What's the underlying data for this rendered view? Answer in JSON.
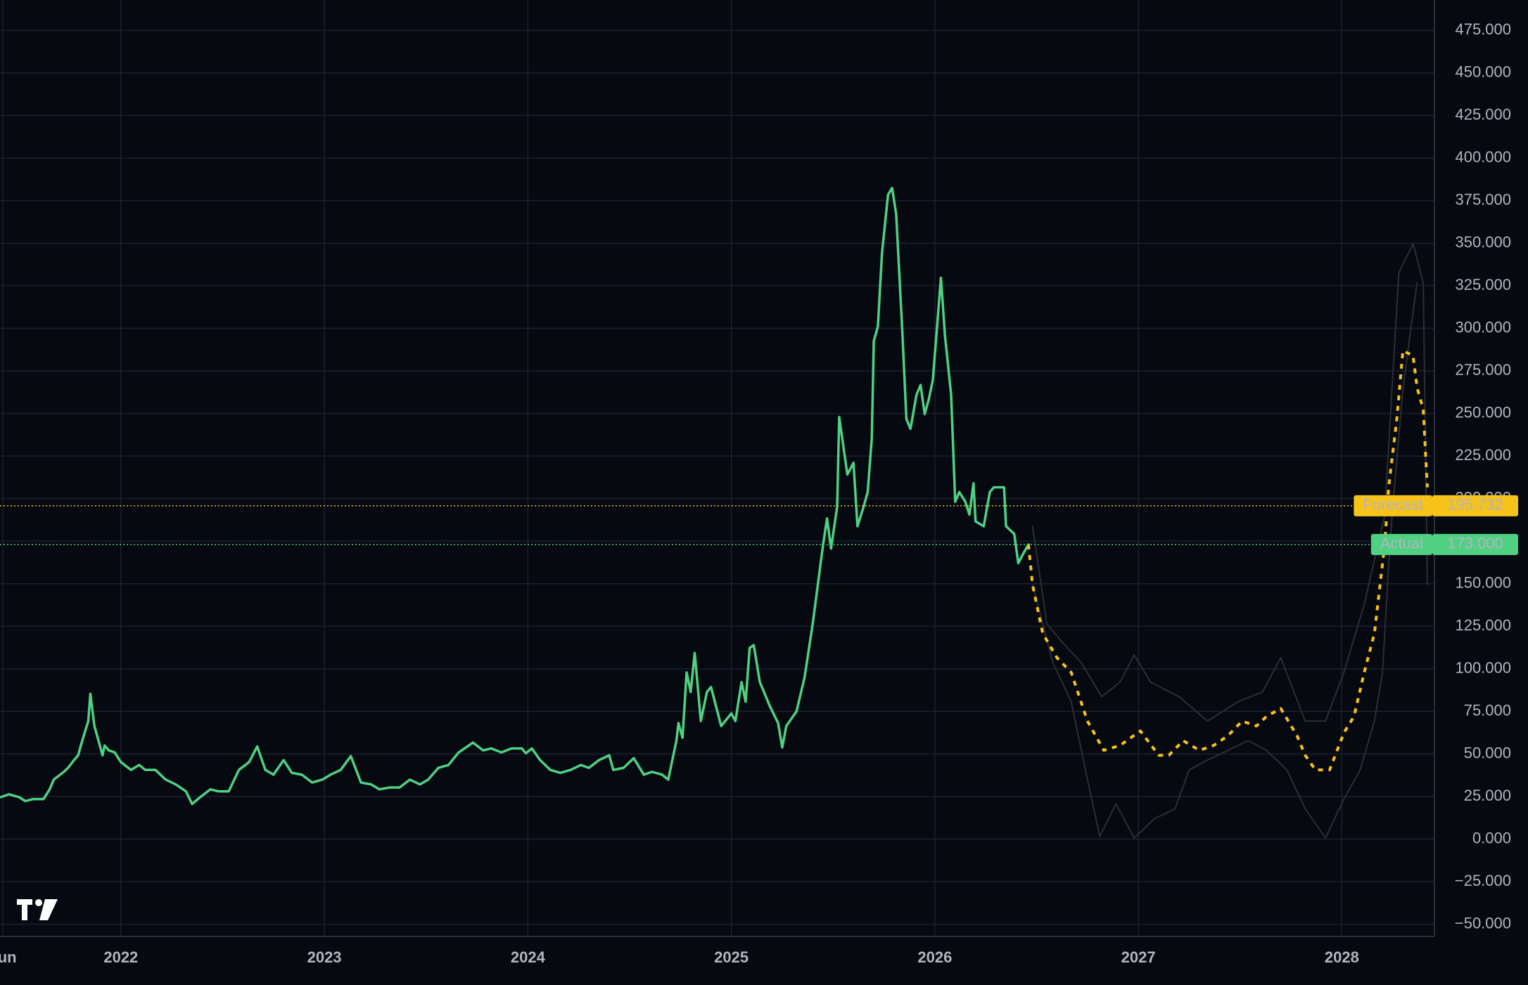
{
  "chart_data": {
    "type": "line",
    "xlim": [
      2021.406,
      2028.455
    ],
    "ylim": [
      -57.2,
      492.8
    ],
    "grid": true,
    "xticks": [
      {
        "value": 2021.42,
        "label": "Jun"
      },
      2022,
      2023,
      2024,
      2025,
      2026,
      2027,
      2028
    ],
    "yticks": [
      {
        "value": -50,
        "label": "−50.000"
      },
      {
        "value": -25,
        "label": "−25.000"
      },
      {
        "value": 0,
        "label": "0.000"
      },
      {
        "value": 25,
        "label": "25.000"
      },
      {
        "value": 50,
        "label": "50.000"
      },
      {
        "value": 75,
        "label": "75.000"
      },
      {
        "value": 100,
        "label": "100.000"
      },
      {
        "value": 125,
        "label": "125.000"
      },
      {
        "value": 150,
        "label": "150.000"
      },
      {
        "value": 175,
        "label": "175.000"
      },
      {
        "value": 200,
        "label": "200.000"
      },
      {
        "value": 225,
        "label": "225.000"
      },
      {
        "value": 250,
        "label": "250.000"
      },
      {
        "value": 275,
        "label": "275.000"
      },
      {
        "value": 300,
        "label": "300.000"
      },
      {
        "value": 325,
        "label": "325.000"
      },
      {
        "value": 350,
        "label": "350.000"
      },
      {
        "value": 375,
        "label": "375.000"
      },
      {
        "value": 400,
        "label": "400.000"
      },
      {
        "value": 425,
        "label": "425.000"
      },
      {
        "value": 450,
        "label": "450.000"
      },
      {
        "value": 475,
        "label": "475.000"
      }
    ],
    "series": [
      {
        "color": "#2b2e36",
        "style": "band",
        "x": [
          2026.48,
          2026.55,
          2026.63,
          2026.72,
          2026.82,
          2026.91,
          2026.98,
          2027.06,
          2027.2,
          2027.34,
          2027.49,
          2027.61,
          2027.7,
          2027.82,
          2027.92,
          2028.01,
          2028.11,
          2028.21,
          2028.28,
          2028.35,
          2028.4,
          2028.42
        ],
        "values": [
          183.7,
          126.5,
          115,
          103.6,
          83.6,
          92.2,
          108.2,
          92.2,
          83.6,
          69.3,
          80.7,
          86.4,
          106.5,
          69.3,
          69.3,
          97.9,
          137.9,
          189.5,
          332.6,
          349.7,
          326.8,
          149.4
        ]
      },
      {
        "color": "#2b2e36",
        "style": "band",
        "x": [
          2026.48,
          2026.58,
          2026.67,
          2026.75,
          2026.81,
          2026.89,
          2026.98,
          2027.08,
          2027.18,
          2027.25,
          2027.34,
          2027.44,
          2027.54,
          2027.63,
          2027.73,
          2027.82,
          2027.92,
          2028.01,
          2028.09,
          2028.16,
          2028.2,
          2028.23,
          2028.25,
          2028.3,
          2028.35,
          2028.37
        ],
        "values": [
          149.4,
          103.6,
          80.7,
          34.9,
          1.7,
          20.6,
          0.6,
          12,
          17.7,
          40.6,
          46.4,
          52.1,
          57.8,
          52.1,
          40.6,
          17.7,
          0.6,
          23.5,
          40.6,
          69.3,
          97.9,
          160.8,
          195.2,
          263.9,
          309.7,
          326.8
        ]
      },
      {
        "name": "Actual",
        "color": "#4fd083",
        "style": "solid",
        "price_line": {
          "value": 173,
          "label": "173.000"
        },
        "x": [
          2021.41,
          2021.45,
          2021.5,
          2021.53,
          2021.57,
          2021.62,
          2021.65,
          2021.67,
          2021.72,
          2021.74,
          2021.77,
          2021.79,
          2021.81,
          2021.84,
          2021.85,
          2021.87,
          2021.89,
          2021.91,
          2021.92,
          2021.94,
          2021.97,
          2022.0,
          2022.05,
          2022.09,
          2022.12,
          2022.17,
          2022.22,
          2022.27,
          2022.32,
          2022.35,
          2022.39,
          2022.44,
          2022.48,
          2022.53,
          2022.58,
          2022.63,
          2022.67,
          2022.71,
          2022.75,
          2022.8,
          2022.84,
          2022.89,
          2022.94,
          2022.99,
          2023.03,
          2023.08,
          2023.13,
          2023.18,
          2023.23,
          2023.27,
          2023.32,
          2023.37,
          2023.42,
          2023.47,
          2023.51,
          2023.56,
          2023.61,
          2023.66,
          2023.71,
          2023.73,
          2023.78,
          2023.82,
          2023.87,
          2023.92,
          2023.97,
          2023.99,
          2024.02,
          2024.06,
          2024.11,
          2024.16,
          2024.21,
          2024.26,
          2024.3,
          2024.35,
          2024.4,
          2024.42,
          2024.47,
          2024.52,
          2024.57,
          2024.61,
          2024.66,
          2024.69,
          2024.71,
          2024.73,
          2024.74,
          2024.76,
          2024.78,
          2024.8,
          2024.82,
          2024.85,
          2024.88,
          2024.9,
          2024.95,
          2025.0,
          2025.02,
          2025.05,
          2025.07,
          2025.09,
          2025.11,
          2025.14,
          2025.19,
          2025.23,
          2025.25,
          2025.27,
          2025.32,
          2025.36,
          2025.4,
          2025.45,
          2025.47,
          2025.49,
          2025.52,
          2025.53,
          2025.57,
          2025.6,
          2025.62,
          2025.65,
          2025.67,
          2025.69,
          2025.7,
          2025.72,
          2025.74,
          2025.77,
          2025.79,
          2025.81,
          2025.84,
          2025.86,
          2025.88,
          2025.91,
          2025.93,
          2025.95,
          2025.97,
          2025.99,
          2026.03,
          2026.05,
          2026.08,
          2026.1,
          2026.12,
          2026.15,
          2026.17,
          2026.19,
          2026.2,
          2026.24,
          2026.27,
          2026.29,
          2026.34,
          2026.35,
          2026.39,
          2026.41,
          2026.43,
          2026.46
        ],
        "values": [
          24.6,
          26.3,
          24.6,
          22.3,
          23.5,
          23.5,
          29.2,
          34.9,
          39.5,
          41.8,
          46.4,
          49.2,
          57.8,
          69.3,
          85.3,
          66.4,
          57.8,
          49.2,
          55,
          52.1,
          50.9,
          45.2,
          40.6,
          43.5,
          40.6,
          40.6,
          34.9,
          32.1,
          28,
          20.6,
          24.6,
          29.2,
          28,
          28,
          40.6,
          45.2,
          54.4,
          40.6,
          37.8,
          46.4,
          38.9,
          37.8,
          33.2,
          34.9,
          37.8,
          40.6,
          48.7,
          33.2,
          32.1,
          29.2,
          30.3,
          30.3,
          34.9,
          32.1,
          34.9,
          41.8,
          43.5,
          50.9,
          55,
          56.7,
          52.1,
          53.2,
          50.9,
          53.2,
          53.2,
          50.4,
          53.2,
          46.4,
          40.6,
          38.9,
          40.6,
          43.5,
          41.8,
          46.4,
          49.2,
          40.6,
          41.8,
          47.5,
          37.8,
          39.5,
          37.8,
          34.9,
          46.4,
          57.8,
          68.1,
          59.5,
          97.9,
          86.4,
          109.3,
          69.3,
          86.4,
          89.3,
          66.4,
          73.8,
          69.3,
          92.2,
          80.7,
          112.2,
          113.9,
          92.2,
          77.8,
          68.1,
          53.8,
          66.4,
          75,
          95,
          126.5,
          172.3,
          188.3,
          170.6,
          195.2,
          247.9,
          214.1,
          221,
          183.7,
          195.2,
          203.8,
          235.3,
          292.5,
          301.1,
          344,
          378.4,
          382.4,
          367,
          298.2,
          246.7,
          241,
          261,
          266.7,
          249.6,
          258.2,
          269.6,
          329.7,
          295.4,
          261,
          198.1,
          203.8,
          198.1,
          190.6,
          208.9,
          186.6,
          183.7,
          203.8,
          206.6,
          206.6,
          183.7,
          179.2,
          162,
          166.6,
          173
        ]
      },
      {
        "name": "Forecast",
        "color": "#f7c21a",
        "style": "dashed",
        "price_line": {
          "value": 195.732,
          "label": "195.732"
        },
        "x": [
          2026.46,
          2026.48,
          2026.53,
          2026.6,
          2026.67,
          2026.75,
          2026.83,
          2026.91,
          2027.01,
          2027.1,
          2027.15,
          2027.22,
          2027.3,
          2027.37,
          2027.44,
          2027.51,
          2027.58,
          2027.63,
          2027.7,
          2027.78,
          2027.82,
          2027.87,
          2027.94,
          2028.01,
          2028.06,
          2028.11,
          2028.16,
          2028.21,
          2028.23,
          2028.27,
          2028.3,
          2028.35,
          2028.37,
          2028.4,
          2028.42
        ],
        "values": [
          173,
          149.4,
          120.8,
          106.5,
          97.9,
          69.3,
          52.1,
          55,
          63.5,
          49.2,
          49.2,
          57.8,
          52.1,
          55,
          60.7,
          69.3,
          66.4,
          72.1,
          76.7,
          60.7,
          49.2,
          40.6,
          40.6,
          62.4,
          72.1,
          97.9,
          120.8,
          172.3,
          206.6,
          246.7,
          286.8,
          283.9,
          265,
          252.4,
          206.6
        ]
      }
    ]
  }
}
